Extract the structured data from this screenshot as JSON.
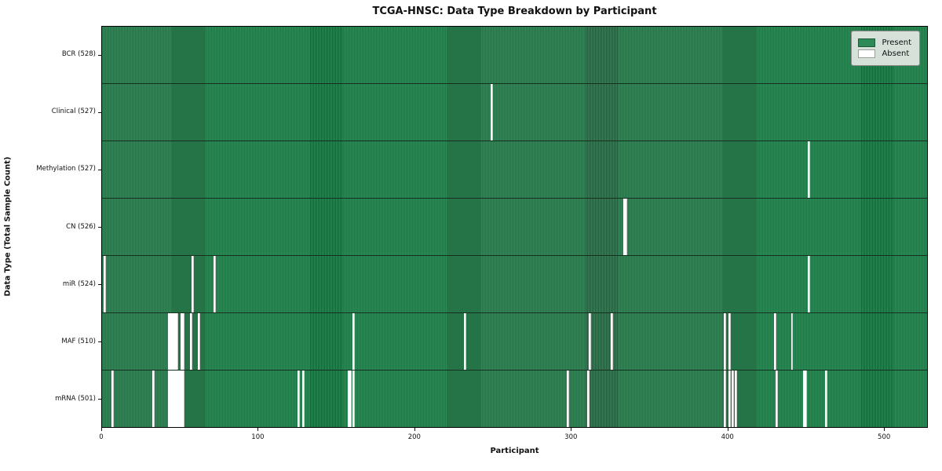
{
  "title": "TCGA-HNSC: Data Type Breakdown by Participant",
  "chart_data": {
    "type": "heatmap",
    "title": "TCGA-HNSC: Data Type Breakdown by Participant",
    "xlabel": "Participant",
    "ylabel": "Data Type (Total Sample Count)",
    "x_ticks": [
      0,
      100,
      200,
      300,
      400,
      500
    ],
    "x_range": [
      0,
      528
    ],
    "n_participants": 528,
    "grid": false,
    "legend_position": "upper right",
    "legend": [
      {
        "label": "Present",
        "color": "#2e8b57"
      },
      {
        "label": "Absent",
        "color": "#ffffff"
      }
    ],
    "colors": {
      "present": "#2e8b57",
      "present_edge": "#1c5c39",
      "absent": "#ffffff",
      "absent_edge": "#c7ccc7",
      "row_divider": "#16301f"
    },
    "rows": [
      {
        "label": "BCR (528)",
        "data_type": "BCR",
        "total_count": 528,
        "absent_participants": []
      },
      {
        "label": "Clinical (527)",
        "data_type": "Clinical",
        "total_count": 527,
        "absent_participants": [
          248
        ]
      },
      {
        "label": "Methylation (527)",
        "data_type": "Methylation",
        "total_count": 527,
        "absent_participants": [
          451
        ]
      },
      {
        "label": "CN (526)",
        "data_type": "CN",
        "total_count": 526,
        "absent_participants": [
          333,
          334
        ]
      },
      {
        "label": "miR (524)",
        "data_type": "miR",
        "total_count": 524,
        "absent_participants": [
          1,
          57,
          71,
          451
        ]
      },
      {
        "label": "MAF (510)",
        "data_type": "MAF",
        "total_count": 510,
        "absent_participants": [
          42,
          43,
          44,
          45,
          46,
          47,
          50,
          51,
          56,
          61,
          160,
          231,
          311,
          325,
          397,
          400,
          429,
          440
        ]
      },
      {
        "label": "mRNA (501)",
        "data_type": "mRNA",
        "total_count": 501,
        "absent_participants": [
          6,
          32,
          42,
          43,
          44,
          45,
          46,
          47,
          48,
          49,
          50,
          51,
          125,
          128,
          157,
          158,
          160,
          297,
          310,
          397,
          400,
          402,
          404,
          430,
          448,
          449,
          462
        ]
      }
    ]
  }
}
